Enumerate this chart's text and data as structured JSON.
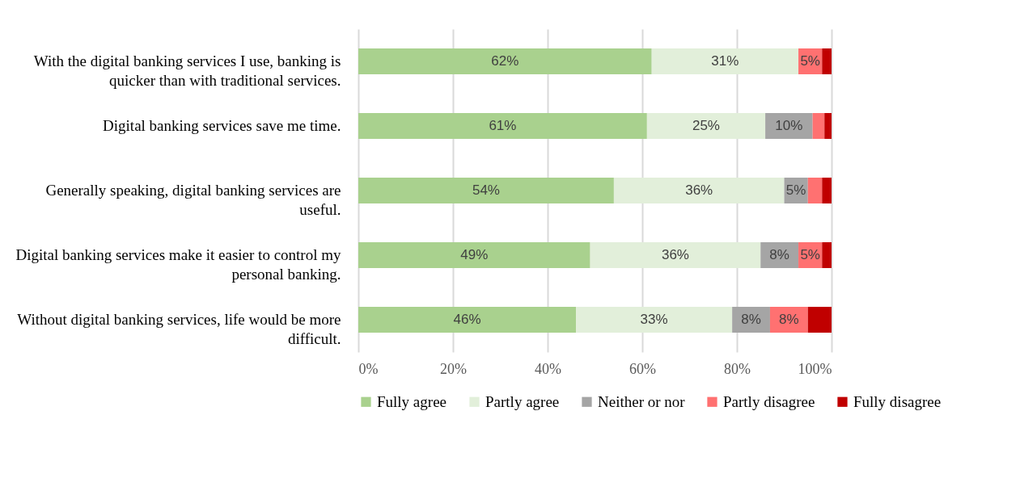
{
  "chart_data": {
    "type": "bar",
    "orientation": "horizontal",
    "stacked": true,
    "categories": [
      "With the digital banking services I use, banking is quicker than with traditional services.",
      "Digital banking services save me time.",
      "Generally speaking, digital banking services are useful.",
      "Digital banking services make it easier to control my personal banking.",
      "Without digital banking services, life would be more difficult."
    ],
    "series": [
      {
        "name": "Fully agree",
        "color": "#a9d18e",
        "values": [
          62,
          61,
          54,
          49,
          46
        ],
        "value_labels": [
          "62%",
          "61%",
          "54%",
          "49%",
          "46%"
        ]
      },
      {
        "name": "Partly agree",
        "color": "#e2efda",
        "values": [
          31,
          25,
          36,
          36,
          33
        ],
        "value_labels": [
          "31%",
          "25%",
          "36%",
          "36%",
          "33%"
        ]
      },
      {
        "name": "Neither or nor",
        "color": "#a5a5a5",
        "values": [
          0,
          10,
          5,
          8,
          8
        ],
        "value_labels": [
          null,
          "10%",
          "5%",
          "8%",
          "8%"
        ]
      },
      {
        "name": "Partly disagree",
        "color": "#ff7171",
        "values": [
          5,
          2.5,
          3,
          5,
          8
        ],
        "value_labels": [
          "5%",
          null,
          null,
          "5%",
          "8%"
        ]
      },
      {
        "name": "Fully disagree",
        "color": "#c00000",
        "values": [
          2,
          1.5,
          2,
          2,
          5
        ],
        "value_labels": [
          null,
          null,
          null,
          null,
          null
        ]
      }
    ],
    "xlim": [
      0,
      100
    ],
    "xticks": [
      {
        "value": 0,
        "label": "0%"
      },
      {
        "value": 20,
        "label": "20%"
      },
      {
        "value": 40,
        "label": "40%"
      },
      {
        "value": 60,
        "label": "60%"
      },
      {
        "value": 80,
        "label": "80%"
      },
      {
        "value": 100,
        "label": "100%"
      }
    ],
    "grid": "x",
    "legend": "bottom"
  }
}
